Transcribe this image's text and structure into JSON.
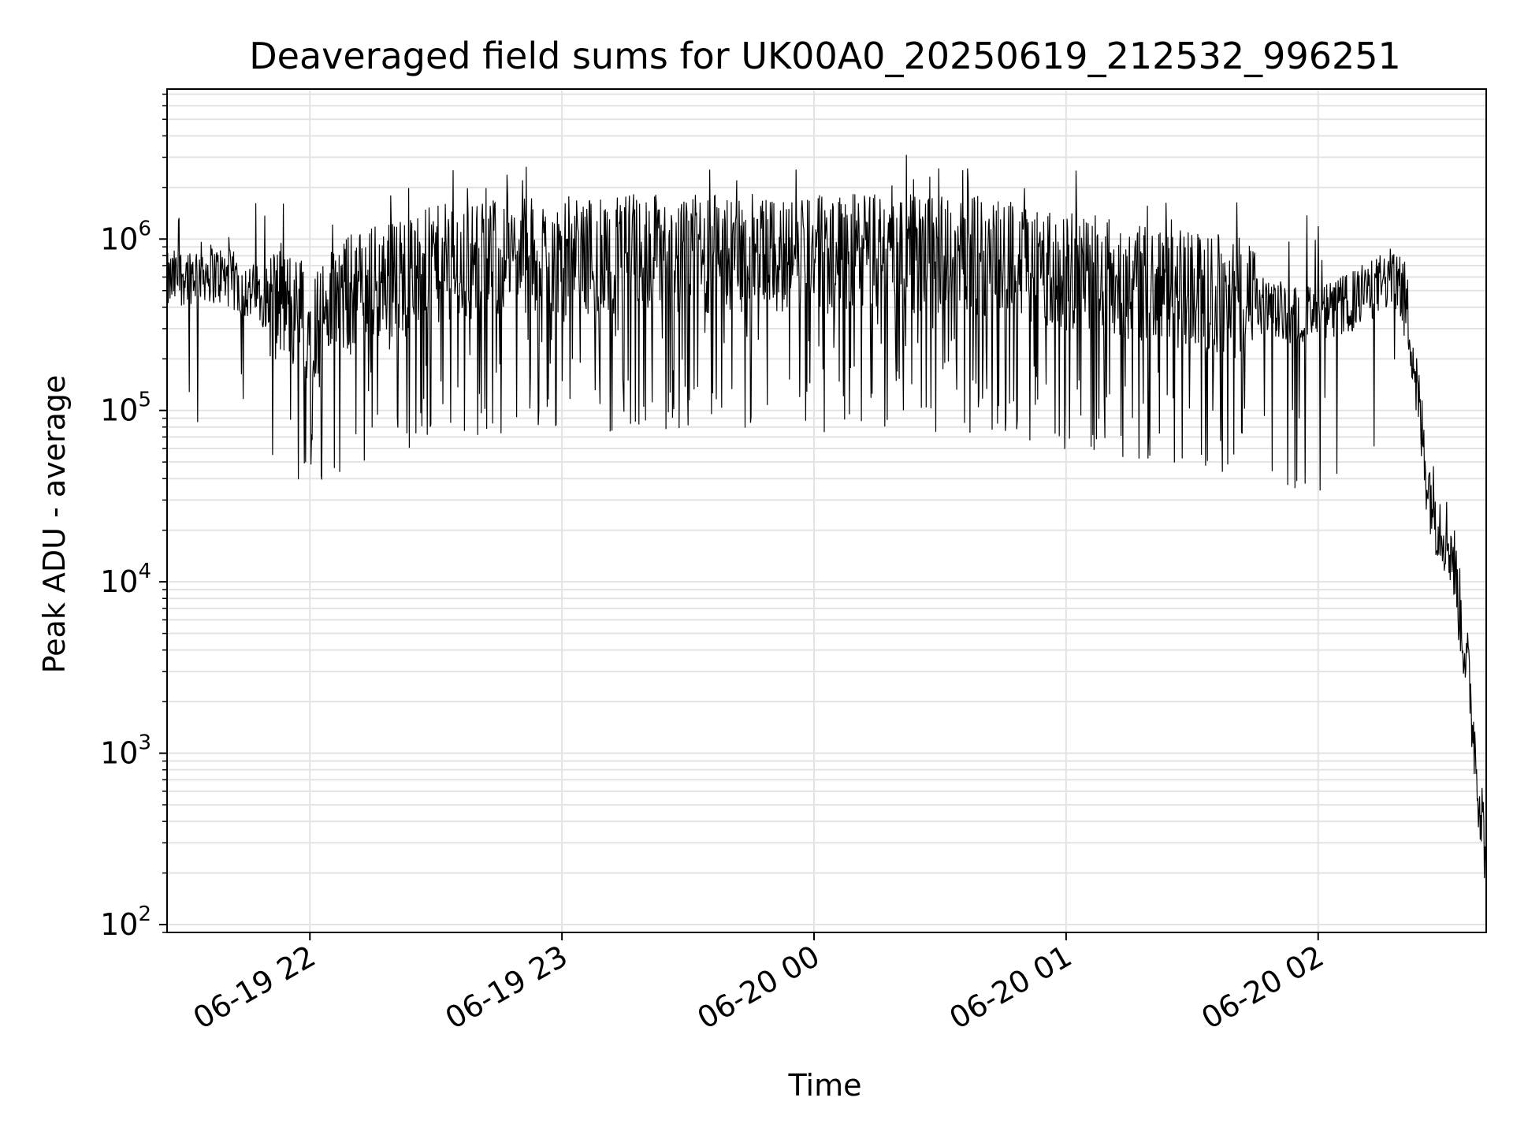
{
  "chart_data": {
    "type": "line",
    "title": "Deaveraged field sums for UK00A0_20250619_212532_996251",
    "xlabel": "Time",
    "ylabel": "Peak ADU - average",
    "yscale": "log",
    "xlim": [
      "2025-06-19 21:26",
      "2025-06-20 02:40"
    ],
    "ylim": [
      90,
      7500000
    ],
    "grid": true,
    "line_color": "#000000",
    "grid_color": "#e3e3e3",
    "x_ticks": [
      {
        "x": "2025-06-19 22:00",
        "label": "06-19 22"
      },
      {
        "x": "2025-06-19 23:00",
        "label": "06-19 23"
      },
      {
        "x": "2025-06-20 00:00",
        "label": "06-20 00"
      },
      {
        "x": "2025-06-20 01:00",
        "label": "06-20 01"
      },
      {
        "x": "2025-06-20 02:00",
        "label": "06-20 02"
      }
    ],
    "y_ticks": [
      {
        "y": 100,
        "base": "10",
        "exp": "2"
      },
      {
        "y": 1000,
        "base": "10",
        "exp": "3"
      },
      {
        "y": 10000,
        "base": "10",
        "exp": "4"
      },
      {
        "y": 100000,
        "base": "10",
        "exp": "5"
      },
      {
        "y": 1000000,
        "base": "10",
        "exp": "6"
      }
    ],
    "series": [
      {
        "x": [
          "2025-06-19 21:26",
          "2025-06-19 21:30",
          "2025-06-19 21:35",
          "2025-06-19 21:40",
          "2025-06-19 21:45",
          "2025-06-19 21:50",
          "2025-06-19 21:55",
          "2025-06-19 22:00",
          "2025-06-19 22:05",
          "2025-06-19 22:10",
          "2025-06-19 22:15",
          "2025-06-19 22:20",
          "2025-06-19 22:25",
          "2025-06-19 22:30",
          "2025-06-19 22:35",
          "2025-06-19 22:40",
          "2025-06-19 22:45",
          "2025-06-19 22:50",
          "2025-06-19 22:55",
          "2025-06-19 23:00",
          "2025-06-19 23:10",
          "2025-06-19 23:20",
          "2025-06-19 23:30",
          "2025-06-19 23:40",
          "2025-06-19 23:50",
          "2025-06-20 00:00",
          "2025-06-20 00:10",
          "2025-06-20 00:20",
          "2025-06-20 00:30",
          "2025-06-20 00:40",
          "2025-06-20 00:50",
          "2025-06-20 01:00",
          "2025-06-20 01:10",
          "2025-06-20 01:20",
          "2025-06-20 01:30",
          "2025-06-20 01:40",
          "2025-06-20 01:50",
          "2025-06-20 02:00",
          "2025-06-20 02:05",
          "2025-06-20 02:10",
          "2025-06-20 02:15",
          "2025-06-20 02:18",
          "2025-06-20 02:20",
          "2025-06-20 02:22",
          "2025-06-20 02:24",
          "2025-06-20 02:26",
          "2025-06-20 02:28",
          "2025-06-20 02:30",
          "2025-06-20 02:32",
          "2025-06-20 02:34",
          "2025-06-20 02:36",
          "2025-06-20 02:38",
          "2025-06-20 02:40"
        ],
        "values": [
          550000,
          620000,
          650000,
          600000,
          500000,
          450000,
          400000,
          320000,
          400000,
          500000,
          550000,
          600000,
          650000,
          700000,
          750000,
          750000,
          800000,
          800000,
          800000,
          800000,
          800000,
          850000,
          800000,
          850000,
          800000,
          800000,
          850000,
          850000,
          800000,
          800000,
          750000,
          650000,
          600000,
          550000,
          500000,
          450000,
          380000,
          350000,
          400000,
          450000,
          550000,
          600000,
          500000,
          300000,
          100000,
          40000,
          25000,
          20000,
          15000,
          6000,
          2500,
          700,
          250
        ]
      }
    ]
  }
}
